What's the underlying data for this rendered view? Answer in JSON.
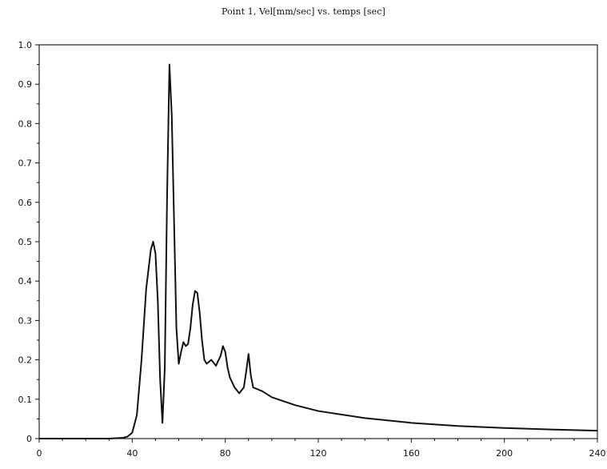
{
  "chart_data": {
    "type": "line",
    "title": "Point 1, Vel[mm/sec] vs. temps [sec]",
    "xlabel": "",
    "ylabel": "",
    "xlim": [
      0,
      240
    ],
    "ylim": [
      0,
      1.0
    ],
    "grid": false,
    "legend": "none",
    "x_ticks": [
      0,
      40,
      80,
      120,
      160,
      200,
      240
    ],
    "x_tick_labels": [
      "0",
      "40",
      "80",
      "120",
      "160",
      "200",
      "240"
    ],
    "y_ticks": [
      0,
      0.1,
      0.2,
      0.3,
      0.4,
      0.5,
      0.6,
      0.7,
      0.8,
      0.9,
      1.0
    ],
    "y_tick_labels": [
      "0",
      "0.1",
      "0.2",
      "0.3",
      "0.4",
      "0.5",
      "0.6",
      "0.7",
      "0.8",
      "0.9",
      "1.0"
    ],
    "series": [
      {
        "color": "#111111",
        "x": [
          0,
          30,
          36,
          38,
          40,
          42,
          44,
          46,
          48,
          49,
          50,
          51,
          52,
          53,
          54,
          55,
          56,
          57,
          58,
          59,
          60,
          61,
          62,
          63,
          64,
          65,
          66,
          67,
          68,
          69,
          70,
          71,
          72,
          74,
          76,
          78,
          79,
          80,
          81,
          82,
          84,
          86,
          88,
          89,
          90,
          91,
          92,
          94,
          96,
          100,
          110,
          120,
          140,
          160,
          180,
          200,
          220,
          240
        ],
        "y": [
          0,
          0,
          0.002,
          0.005,
          0.015,
          0.06,
          0.2,
          0.38,
          0.48,
          0.5,
          0.47,
          0.35,
          0.15,
          0.04,
          0.18,
          0.62,
          0.95,
          0.82,
          0.55,
          0.28,
          0.19,
          0.22,
          0.245,
          0.235,
          0.24,
          0.28,
          0.34,
          0.375,
          0.37,
          0.32,
          0.25,
          0.2,
          0.19,
          0.2,
          0.185,
          0.21,
          0.235,
          0.22,
          0.18,
          0.155,
          0.13,
          0.115,
          0.13,
          0.17,
          0.215,
          0.16,
          0.13,
          0.125,
          0.12,
          0.105,
          0.085,
          0.07,
          0.052,
          0.04,
          0.032,
          0.027,
          0.023,
          0.02
        ]
      }
    ]
  }
}
